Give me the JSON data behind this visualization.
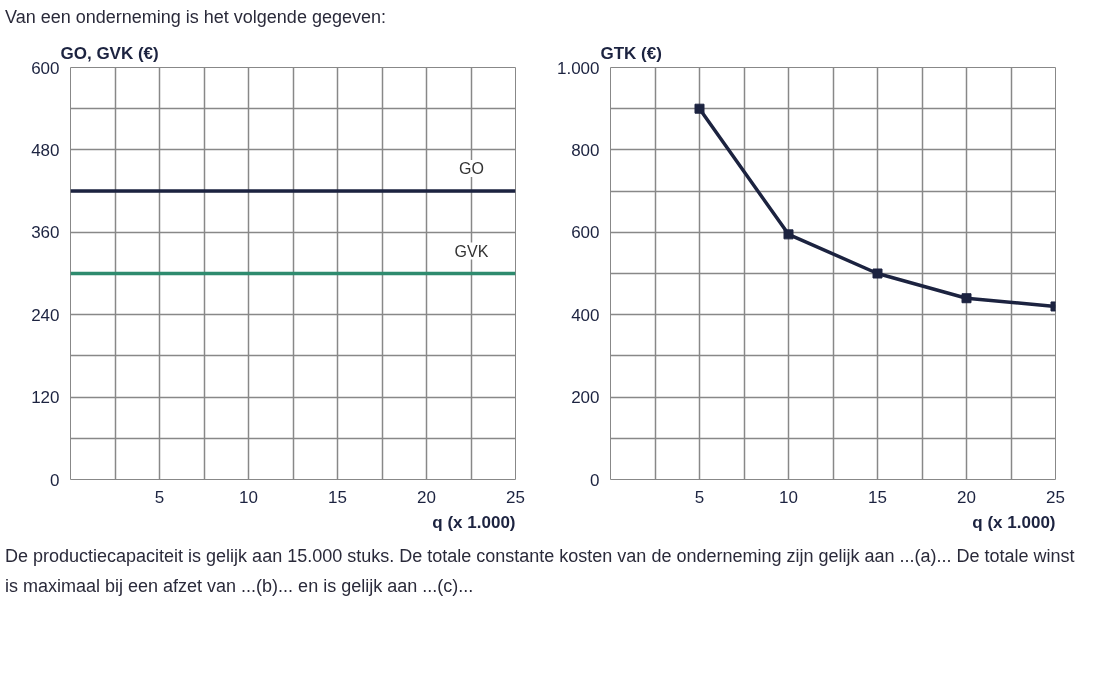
{
  "chart_data": [
    {
      "type": "line",
      "title": "Van een onderneming is het volgende gegeven:",
      "ylabel": "GO, GVK (€)",
      "xlabel": "q (x 1.000)",
      "x": [
        0,
        25
      ],
      "series": [
        {
          "name": "GO",
          "color": "#1c2340",
          "values": [
            420,
            420
          ]
        },
        {
          "name": "GVK",
          "color": "#2e8b6e",
          "values": [
            300,
            300
          ]
        }
      ],
      "xlim": [
        0,
        25
      ],
      "xticks": [
        {
          "value": 0,
          "label": null
        },
        {
          "value": 2.5,
          "label": null
        },
        5,
        {
          "value": 7.5,
          "label": null
        },
        10,
        {
          "value": 12.5,
          "label": null
        },
        15,
        {
          "value": 17.5,
          "label": null
        },
        20,
        {
          "value": 22.5,
          "label": null
        },
        25
      ],
      "ylim": [
        0,
        600
      ],
      "yticks": [
        0,
        {
          "value": 60,
          "label": null
        },
        120,
        {
          "value": 180,
          "label": null
        },
        240,
        {
          "value": 300,
          "label": null
        },
        360,
        {
          "value": 420,
          "label": null
        },
        480,
        {
          "value": 540,
          "label": null
        },
        600
      ],
      "grid": true,
      "legend": false,
      "marker": "none",
      "line_style": "solid"
    },
    {
      "type": "line",
      "ylabel": "GTK (€)",
      "xlabel": "q (x 1.000)",
      "x": [
        5,
        10,
        15,
        20,
        25
      ],
      "series": [
        {
          "color": "#1c2340",
          "values": [
            900,
            595,
            500,
            440,
            420
          ]
        }
      ],
      "annotations": [
        "De productiecapaciteit is gelijk aan 15.000 stuks. De totale constante kosten van de onderneming zijn gelijk aan ...(a)... De totale winst is maximaal bij een afzet van ...(b)... en is gelijk aan ...(c)..."
      ],
      "xlim": [
        0,
        25
      ],
      "xticks": [
        {
          "value": 0,
          "label": null
        },
        {
          "value": 2.5,
          "label": null
        },
        5,
        {
          "value": 7.5,
          "label": null
        },
        10,
        {
          "value": 12.5,
          "label": null
        },
        15,
        {
          "value": 17.5,
          "label": null
        },
        20,
        {
          "value": 22.5,
          "label": null
        },
        25
      ],
      "ylim": [
        0,
        1000
      ],
      "yticks": [
        0,
        {
          "value": 100,
          "label": null
        },
        200,
        {
          "value": 300,
          "label": null
        },
        400,
        {
          "value": 500,
          "label": null
        },
        600,
        {
          "value": 700,
          "label": null
        },
        800,
        {
          "value": 900,
          "label": null
        },
        {
          "value": 1000,
          "label": "1.000"
        }
      ],
      "grid": true,
      "legend": false,
      "marker": "square",
      "line_style": "solid"
    }
  ]
}
